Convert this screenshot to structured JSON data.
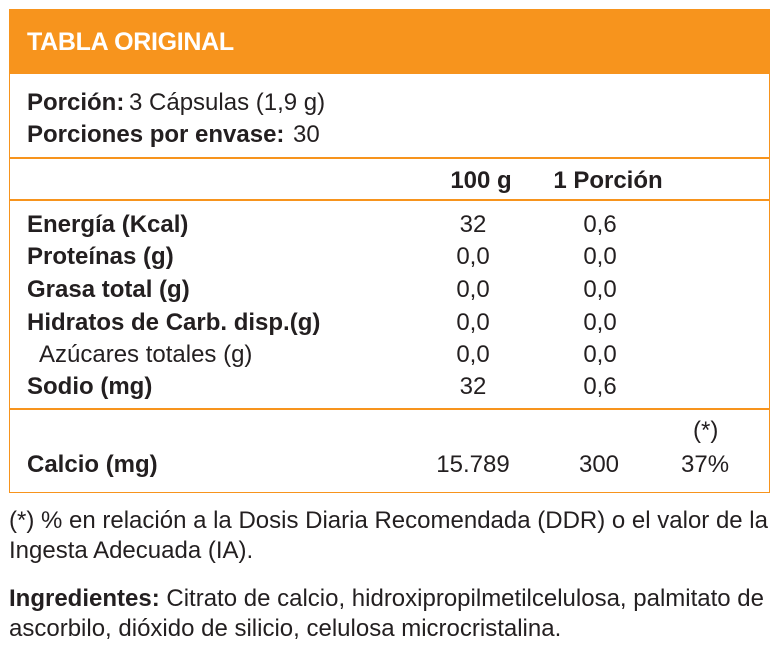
{
  "header": {
    "title": "TABLA ORIGINAL"
  },
  "serving": {
    "portion_label": "Porción:",
    "portion_value": "3 Cápsulas (1,9 g)",
    "per_pack_label": "Porciones por envase:",
    "per_pack_value": "30"
  },
  "columns": {
    "per100": "100 g",
    "per_portion": "1 Porción"
  },
  "rows": [
    {
      "label": "Energía (Kcal)",
      "per100": "32",
      "per_portion": "0,6"
    },
    {
      "label": "Proteínas (g)",
      "per100": "0,0",
      "per_portion": "0,0"
    },
    {
      "label": "Grasa total (g)",
      "per100": "0,0",
      "per_portion": "0,0"
    },
    {
      "label": "Hidratos de Carb. disp.(g)",
      "per100": "0,0",
      "per_portion": "0,0"
    },
    {
      "label": "Azúcares totales (g)",
      "per100": "0,0",
      "per_portion": "0,0"
    },
    {
      "label": "Sodio (mg)",
      "per100": "32",
      "per_portion": "0,6"
    }
  ],
  "calcium": {
    "label": "Calcio (mg)",
    "per100": "15.789",
    "per_portion": "300",
    "ddr_marker": "(*)",
    "ddr_percent": "37%"
  },
  "footnote": "(*) % en relación a la Dosis Diaria Recomendada (DDR) o el valor de la Ingesta Adecuada (IA).",
  "ingredients": {
    "label": "Ingredientes:",
    "text": "Citrato de calcio, hidroxipropilmetilcelulosa, palmitato de ascorbilo, dióxido de silicio, celulosa microcristalina."
  }
}
